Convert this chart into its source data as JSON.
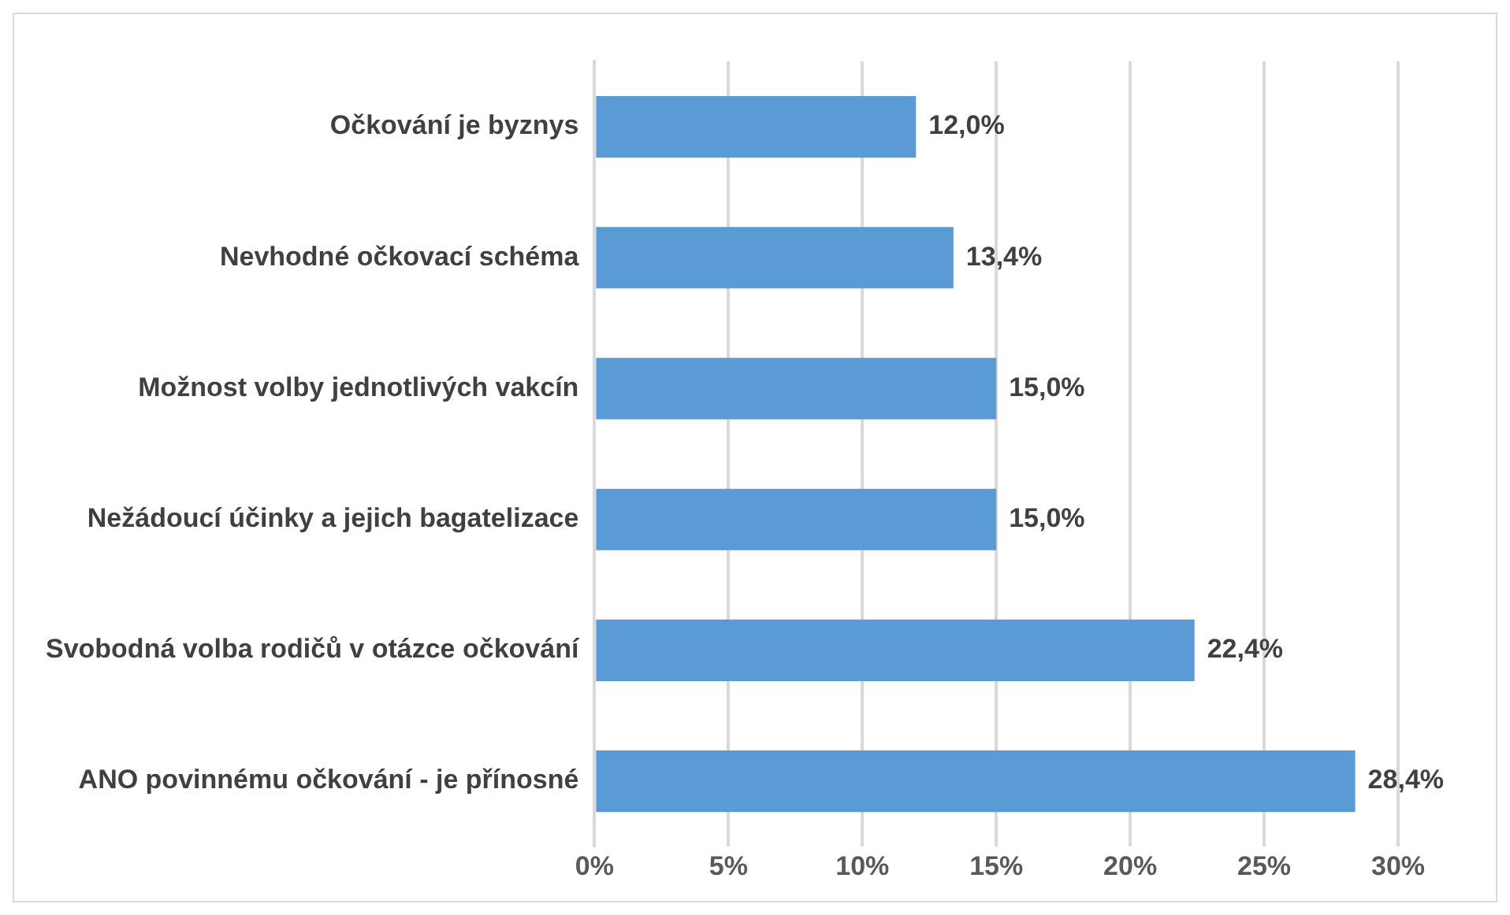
{
  "chart_data": {
    "type": "bar",
    "orientation": "horizontal",
    "categories": [
      "Očkování je byznys",
      "Nevhodné očkovací schéma",
      "Možnost volby jednotlivých vakcín",
      "Nežádoucí účinky a jejich bagatelizace",
      "Svobodná volba rodičů v otázce očkování",
      "ANO povinnému očkování - je přínosné"
    ],
    "values": [
      12.0,
      13.4,
      15.0,
      15.0,
      22.4,
      28.4
    ],
    "value_labels": [
      "12,0%",
      "13,4%",
      "15,0%",
      "15,0%",
      "22,4%",
      "28,4%"
    ],
    "color": "#5b9bd5",
    "xlim": [
      0,
      30
    ],
    "xticks": [
      {
        "value": 0,
        "label": "0%"
      },
      {
        "value": 5,
        "label": "5%"
      },
      {
        "value": 10,
        "label": "10%"
      },
      {
        "value": 15,
        "label": "15%"
      },
      {
        "value": 20,
        "label": "20%"
      },
      {
        "value": 25,
        "label": "25%"
      },
      {
        "value": 30,
        "label": "30%"
      }
    ],
    "grid": "x",
    "legend": false
  }
}
